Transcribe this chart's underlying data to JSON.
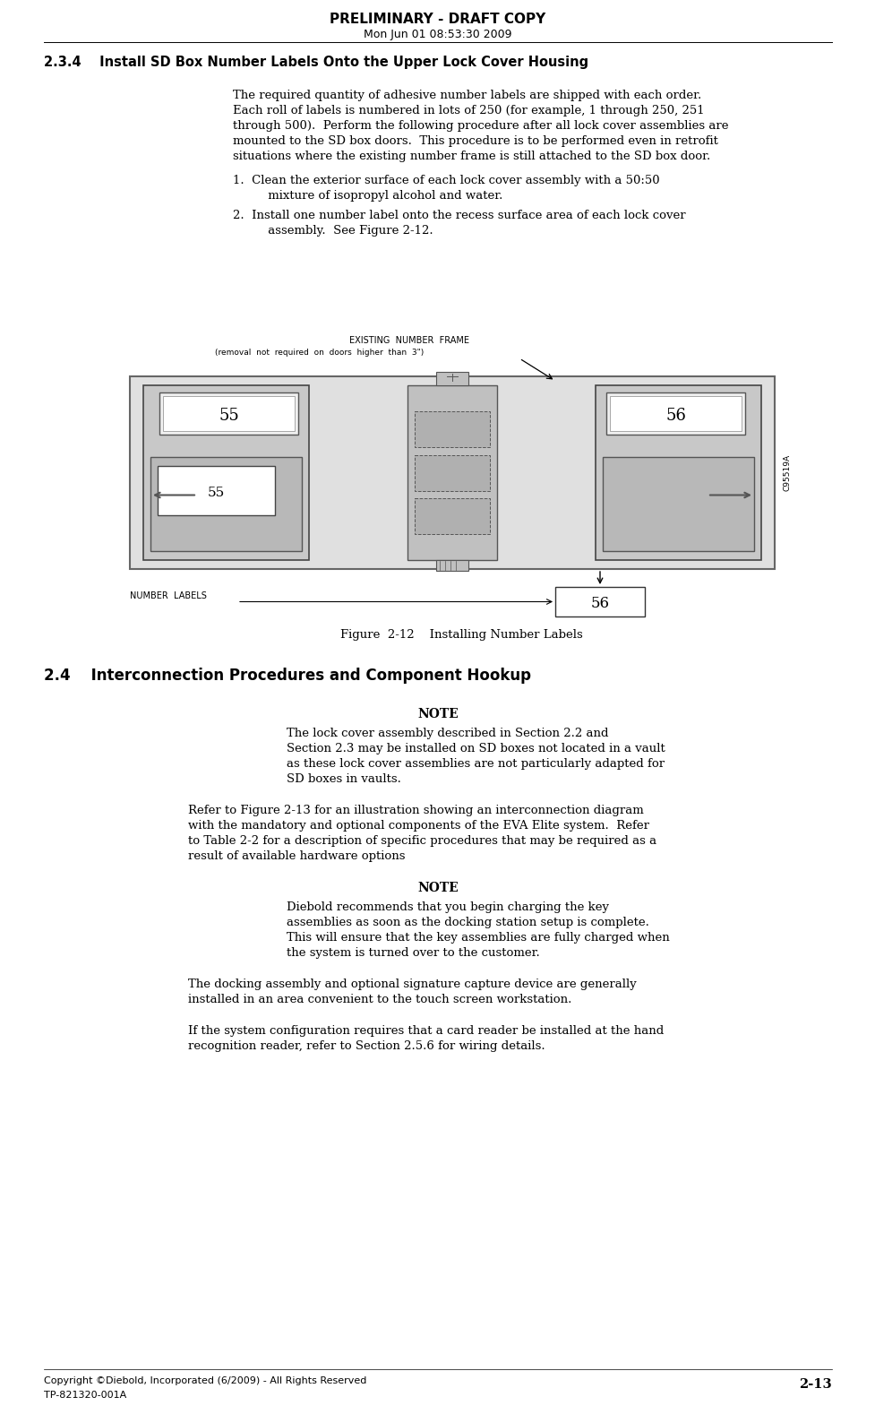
{
  "title_line1": "PRELIMINARY - DRAFT COPY",
  "title_line2": "Mon Jun 01 08:53:30 2009",
  "section_header": "2.3.4    Install SD Box Number Labels Onto the Upper Lock Cover Housing",
  "body1_lines": [
    "The required quantity of adhesive number labels are shipped with each order.",
    "Each roll of labels is numbered in lots of 250 (for example, 1 through 250, 251",
    "through 500).  Perform the following procedure after all lock cover assemblies are",
    "mounted to the SD box doors.  This procedure is to be performed even in retrofit",
    "situations where the existing number frame is still attached to the SD box door."
  ],
  "list1_line1": "1.  Clean the exterior surface of each lock cover assembly with a 50:50",
  "list1_line2": "     mixture of isopropyl alcohol and water.",
  "list2_line1": "2.  Install one number label onto the recess surface area of each lock cover",
  "list2_line2": "     assembly.  See Figure 2-12.",
  "figure_caption": "Figure  2-12    Installing Number Labels",
  "section2_header": "2.4    Interconnection Procedures and Component Hookup",
  "note1_title": "NOTE",
  "note1_lines": [
    "The lock cover assembly described in Section 2.2 and",
    "Section 2.3 may be installed on SD boxes not located in a vault",
    "as these lock cover assemblies are not particularly adapted for",
    "SD boxes in vaults."
  ],
  "body2_lines": [
    "Refer to Figure 2-13 for an illustration showing an interconnection diagram",
    "with the mandatory and optional components of the EVA Elite system.  Refer",
    "to Table 2-2 for a description of specific procedures that may be required as a",
    "result of available hardware options"
  ],
  "note2_title": "NOTE",
  "note2_lines": [
    "Diebold recommends that you begin charging the key",
    "assemblies as soon as the docking station setup is complete.",
    "This will ensure that the key assemblies are fully charged when",
    "the system is turned over to the customer."
  ],
  "body3_lines": [
    "The docking assembly and optional signature capture device are generally",
    "installed in an area convenient to the touch screen workstation."
  ],
  "body4_lines": [
    "If the system configuration requires that a card reader be installed at the hand",
    "recognition reader, refer to Section 2.5.6 for wiring details."
  ],
  "page_number": "2-13",
  "footer_line1": "Copyright ©Diebold, Incorporated (6/2009) - All Rights Reserved",
  "footer_line2": "TP-821320-001A",
  "bg": "#ffffff"
}
